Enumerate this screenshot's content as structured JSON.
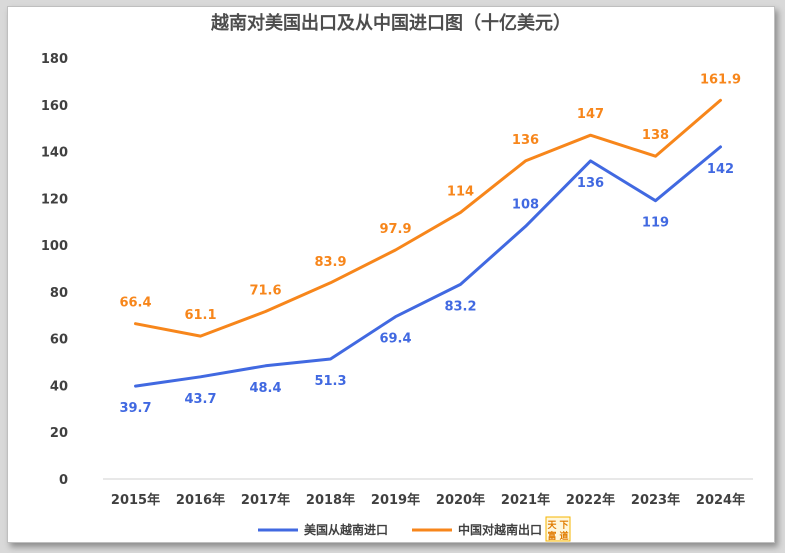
{
  "chart_data": {
    "type": "line",
    "title": "越南对美国出口及从中国进口图（十亿美元）",
    "categories": [
      "2015年",
      "2016年",
      "2017年",
      "2018年",
      "2019年",
      "2020年",
      "2021年",
      "2022年",
      "2023年",
      "2024年"
    ],
    "ylim": [
      0,
      180
    ],
    "yticks": [
      0,
      20,
      40,
      60,
      80,
      100,
      120,
      140,
      160,
      180
    ],
    "grid": false,
    "legend_position": "bottom",
    "series": [
      {
        "name": "美国从越南进口",
        "color": "#4169e1",
        "values": [
          39.7,
          43.7,
          48.4,
          51.3,
          69.4,
          83.2,
          108,
          136,
          119,
          142
        ],
        "labels": [
          "39.7",
          "43.7",
          "48.4",
          "51.3",
          "69.4",
          "83.2",
          "108",
          "136",
          "119",
          "142"
        ]
      },
      {
        "name": "中国对越南出口",
        "color": "#f7861b",
        "values": [
          66.4,
          61.1,
          71.6,
          83.9,
          97.9,
          114,
          136,
          147,
          138,
          161.9
        ],
        "labels": [
          "66.4",
          "61.1",
          "71.6",
          "83.9",
          "97.9",
          "114",
          "136",
          "147",
          "138",
          "161.9"
        ]
      }
    ]
  },
  "logo": {
    "text": "天下富道",
    "color": "#f5b400"
  }
}
